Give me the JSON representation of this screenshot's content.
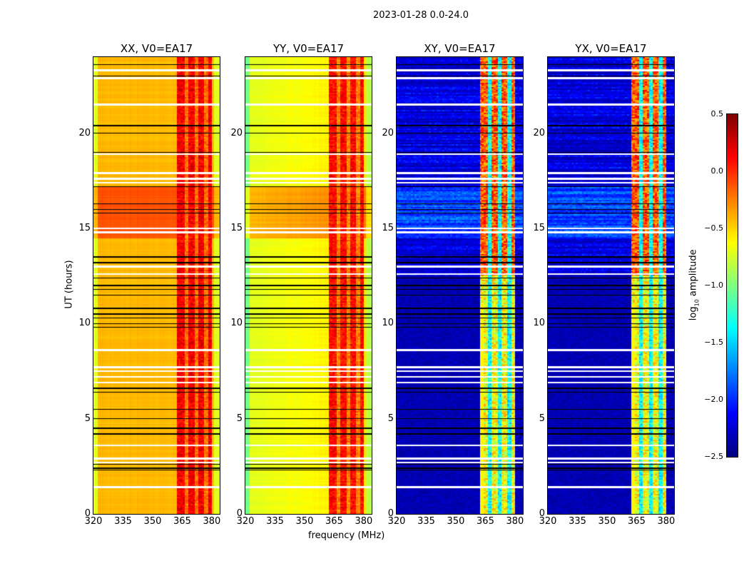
{
  "chart_data": {
    "type": "heatmap",
    "suptitle": "2023-01-28 0.0-24.0",
    "xlabel": "frequency (MHz)",
    "ylabel": "UT (hours)",
    "xlim": [
      320,
      384
    ],
    "ylim": [
      0,
      24
    ],
    "xticks": [
      "320",
      "335",
      "350",
      "365",
      "380"
    ],
    "xtick_values": [
      320,
      335,
      350,
      365,
      380
    ],
    "yticks": [
      "0",
      "5",
      "10",
      "15",
      "20"
    ],
    "ytick_values": [
      0,
      5,
      10,
      15,
      20
    ],
    "colormap": "jet",
    "colorbar": {
      "label": "log10 amplitude",
      "label_main": "log",
      "label_sub": "10",
      "label_rest": " amplitude",
      "range": [
        -2.5,
        0.5
      ],
      "ticks": [
        "0.5",
        "0.0",
        "−0.5",
        "−1.0",
        "−1.5",
        "−2.0",
        "−2.5"
      ],
      "tick_values": [
        0.5,
        0.0,
        -0.5,
        -1.0,
        -1.5,
        -2.0,
        -2.5
      ]
    },
    "panels": [
      {
        "title": "XX, V0=EA17",
        "kind": "parallel",
        "base": -0.42,
        "band": 0.15,
        "active_band_mhz": [
          362,
          380
        ],
        "bright_period_hours": [
          14.5,
          17.2
        ]
      },
      {
        "title": "YY, V0=EA17",
        "kind": "parallel",
        "base": -0.72,
        "band": 0.1,
        "active_band_mhz": [
          362,
          380
        ],
        "bright_period_hours": [
          14.5,
          17.2
        ]
      },
      {
        "title": "XY, V0=EA17",
        "kind": "cross",
        "base": -2.35,
        "band": -0.7,
        "active_band_mhz": [
          362,
          380
        ]
      },
      {
        "title": "YX, V0=EA17",
        "kind": "cross",
        "base": -2.35,
        "band": -0.7,
        "active_band_mhz": [
          362,
          380
        ]
      }
    ],
    "flagged_white_hours": [
      23.3,
      22.9,
      21.5,
      18.9,
      17.9,
      17.6,
      17.4,
      15.0,
      14.8,
      13.0,
      12.6,
      8.6,
      7.7,
      7.5,
      7.2,
      6.9,
      3.6,
      2.9,
      2.7,
      1.4
    ],
    "flagged_black_hours": [
      23.6,
      23.0,
      20.4,
      20.0,
      19.0,
      17.2,
      16.3,
      16.0,
      15.8,
      13.5,
      13.2,
      12.4,
      12.0,
      11.8,
      11.5,
      10.8,
      10.5,
      10.3,
      10.0,
      9.8,
      6.6,
      6.4,
      5.5,
      5.0,
      4.5,
      4.2,
      2.6,
      2.4,
      2.3
    ]
  }
}
